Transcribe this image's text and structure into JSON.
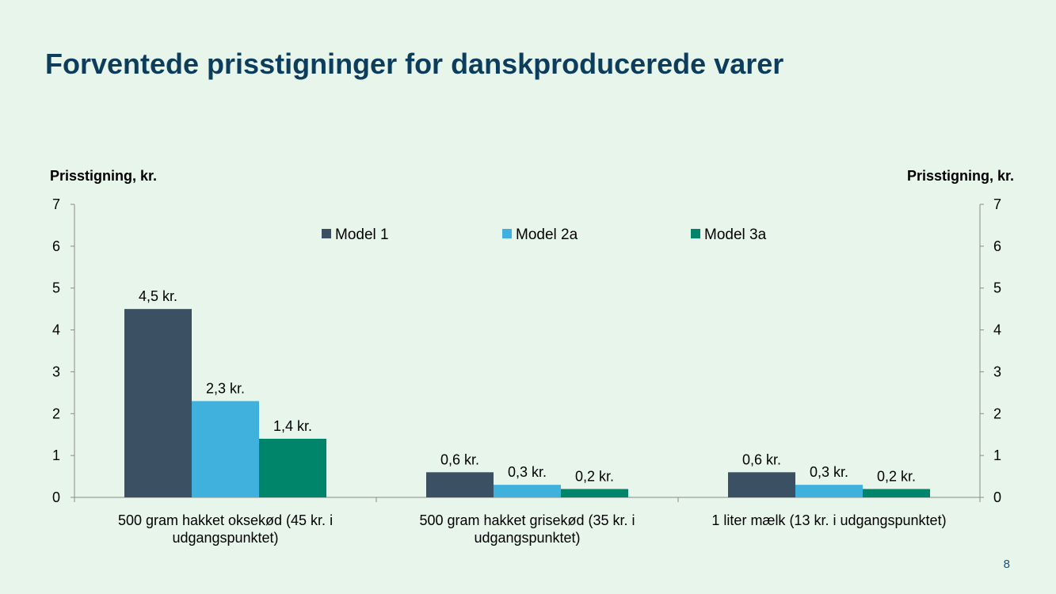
{
  "slide": {
    "title": "Forventede prisstigninger for danskproducerede varer",
    "page_number": "8"
  },
  "colors": {
    "model1": "#3b5163",
    "model2a": "#3fb1dc",
    "model3a": "#00856a",
    "background": "#e8f5ea",
    "title": "#0c3d5c"
  },
  "chart_data": {
    "type": "bar",
    "ylabel_left": "Prisstigning, kr.",
    "ylabel_right": "Prisstigning, kr.",
    "ylim": [
      0,
      7
    ],
    "yticks": [
      "0",
      "1",
      "2",
      "3",
      "4",
      "5",
      "6",
      "7"
    ],
    "legend_position": "top",
    "categories": [
      [
        "500 gram hakket oksekød (45 kr. i",
        "udgangspunktet)"
      ],
      [
        "500 gram hakket grisekød (35 kr. i",
        "udgangspunktet)"
      ],
      [
        "1 liter mælk (13 kr. i udgangspunktet)"
      ]
    ],
    "series": [
      {
        "name": "Model 1",
        "values": [
          4.5,
          0.6,
          0.6
        ],
        "labels": [
          "4,5 kr.",
          "0,6 kr.",
          "0,6 kr."
        ]
      },
      {
        "name": "Model 2a",
        "values": [
          2.3,
          0.3,
          0.3
        ],
        "labels": [
          "2,3 kr.",
          "0,3 kr.",
          "0,3 kr."
        ]
      },
      {
        "name": "Model 3a",
        "values": [
          1.4,
          0.2,
          0.2
        ],
        "labels": [
          "1,4 kr.",
          "0,2 kr.",
          "0,2 kr."
        ]
      }
    ]
  }
}
